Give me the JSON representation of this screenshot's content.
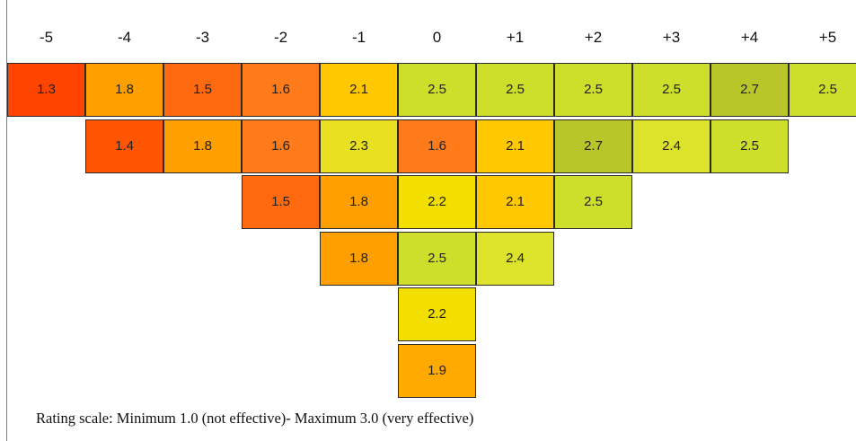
{
  "chart_data": {
    "type": "heatmap",
    "columns": [
      "-5",
      "-4",
      "-3",
      "-2",
      "-1",
      "0",
      "+1",
      "+2",
      "+3",
      "+4",
      "+5"
    ],
    "rows": [
      [
        {
          "col": 0,
          "value": 1.3
        },
        {
          "col": 1,
          "value": 1.8
        },
        {
          "col": 2,
          "value": 1.5
        },
        {
          "col": 3,
          "value": 1.6
        },
        {
          "col": 4,
          "value": 2.1
        },
        {
          "col": 5,
          "value": 2.5
        },
        {
          "col": 6,
          "value": 2.5
        },
        {
          "col": 7,
          "value": 2.5
        },
        {
          "col": 8,
          "value": 2.5
        },
        {
          "col": 9,
          "value": 2.7
        },
        {
          "col": 10,
          "value": 2.5
        }
      ],
      [
        {
          "col": 1,
          "value": 1.4
        },
        {
          "col": 2,
          "value": 1.8
        },
        {
          "col": 3,
          "value": 1.6
        },
        {
          "col": 4,
          "value": 2.3
        },
        {
          "col": 5,
          "value": 1.6
        },
        {
          "col": 6,
          "value": 2.1
        },
        {
          "col": 7,
          "value": 2.7
        },
        {
          "col": 8,
          "value": 2.4
        },
        {
          "col": 9,
          "value": 2.5
        }
      ],
      [
        {
          "col": 3,
          "value": 1.5
        },
        {
          "col": 4,
          "value": 1.8
        },
        {
          "col": 5,
          "value": 2.2
        },
        {
          "col": 6,
          "value": 2.1
        },
        {
          "col": 7,
          "value": 2.5
        }
      ],
      [
        {
          "col": 4,
          "value": 1.8
        },
        {
          "col": 5,
          "value": 2.5
        },
        {
          "col": 6,
          "value": 2.4
        }
      ],
      [
        {
          "col": 5,
          "value": 2.2
        }
      ],
      [
        {
          "col": 5,
          "value": 1.9
        }
      ]
    ],
    "color_scale": [
      {
        "value": 1.3,
        "color": "#ff4400"
      },
      {
        "value": 1.4,
        "color": "#ff5500"
      },
      {
        "value": 1.5,
        "color": "#ff6a10"
      },
      {
        "value": 1.6,
        "color": "#ff7a18"
      },
      {
        "value": 1.8,
        "color": "#ffa000"
      },
      {
        "value": 1.9,
        "color": "#ffaa00"
      },
      {
        "value": 2.1,
        "color": "#ffc800"
      },
      {
        "value": 2.2,
        "color": "#f2df00"
      },
      {
        "value": 2.3,
        "color": "#e8e020"
      },
      {
        "value": 2.4,
        "color": "#dde22a"
      },
      {
        "value": 2.5,
        "color": "#cddf2a"
      },
      {
        "value": 2.7,
        "color": "#b8c62a"
      }
    ],
    "caption": "Rating scale: Minimum 1.0 (not effective)- Maximum 3.0 (very effective)"
  }
}
